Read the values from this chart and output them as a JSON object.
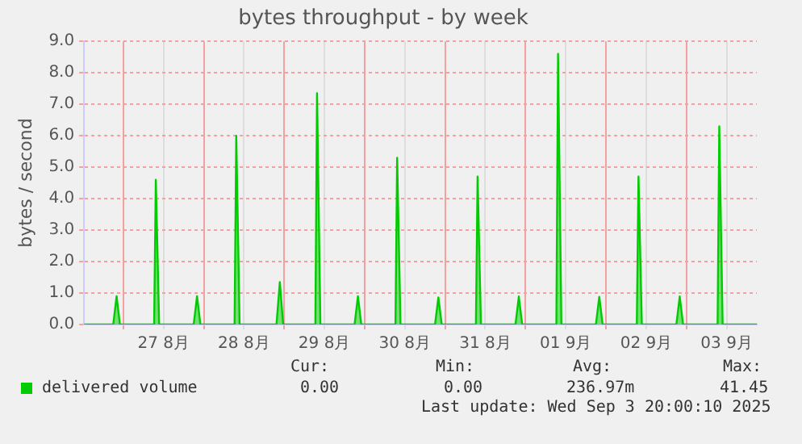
{
  "chart_data": {
    "type": "area",
    "title": "bytes throughput - by week",
    "ylabel": "bytes / second",
    "x": [
      "2025-08-26T12:18",
      "2025-08-26T21:00",
      "2025-08-26T22:00",
      "2025-08-26T23:00",
      "2025-08-27T09:12",
      "2025-08-27T09:42",
      "2025-08-27T10:42",
      "2025-08-27T21:00",
      "2025-08-27T22:00",
      "2025-08-27T23:00",
      "2025-08-28T09:12",
      "2025-08-28T09:42",
      "2025-08-28T10:42",
      "2025-08-28T21:42",
      "2025-08-28T22:42",
      "2025-08-28T23:42",
      "2025-08-29T09:18",
      "2025-08-29T09:48",
      "2025-08-29T10:48",
      "2025-08-29T21:00",
      "2025-08-29T22:00",
      "2025-08-29T23:00",
      "2025-08-30T09:12",
      "2025-08-30T09:42",
      "2025-08-30T10:42",
      "2025-08-30T21:00",
      "2025-08-30T22:00",
      "2025-08-30T23:00",
      "2025-08-31T09:12",
      "2025-08-31T09:42",
      "2025-08-31T10:42",
      "2025-08-31T21:00",
      "2025-08-31T22:00",
      "2025-08-31T23:00",
      "2025-09-01T09:12",
      "2025-09-01T09:42",
      "2025-09-01T10:42",
      "2025-09-01T21:00",
      "2025-09-01T22:00",
      "2025-09-01T23:00",
      "2025-09-02T09:12",
      "2025-09-02T09:42",
      "2025-09-02T10:42",
      "2025-09-02T21:00",
      "2025-09-02T22:00",
      "2025-09-02T23:00",
      "2025-09-03T09:18",
      "2025-09-03T09:48",
      "2025-09-03T10:48",
      "2025-09-03T21:00"
    ],
    "series": [
      {
        "name": "delivered volume",
        "color": "#00cc00",
        "values": [
          0,
          0,
          0.9,
          0,
          0,
          4.6,
          0,
          0,
          0.9,
          0,
          0,
          6.0,
          0,
          0,
          1.35,
          0,
          0,
          7.35,
          0,
          0,
          0.9,
          0,
          0,
          5.3,
          0,
          0,
          0.86,
          0,
          0,
          4.7,
          0,
          0,
          0.89,
          0,
          0,
          8.6,
          0,
          0,
          0.88,
          0,
          0,
          4.7,
          0,
          0,
          0.89,
          0,
          0,
          6.3,
          0,
          0
        ]
      }
    ],
    "xlim": [
      "2025-08-26T12:18",
      "2025-09-03T21:00"
    ],
    "xticks": [
      {
        "value": "2025-08-27T00:00",
        "label": null
      },
      {
        "value": "2025-08-27T12:00",
        "label": "27 8月"
      },
      {
        "value": "2025-08-28T00:00",
        "label": null
      },
      {
        "value": "2025-08-28T12:00",
        "label": "28 8月"
      },
      {
        "value": "2025-08-29T00:00",
        "label": null
      },
      {
        "value": "2025-08-29T12:00",
        "label": "29 8月"
      },
      {
        "value": "2025-08-30T00:00",
        "label": null
      },
      {
        "value": "2025-08-30T12:00",
        "label": "30 8月"
      },
      {
        "value": "2025-08-31T00:00",
        "label": null
      },
      {
        "value": "2025-08-31T12:00",
        "label": "31 8月"
      },
      {
        "value": "2025-09-01T00:00",
        "label": null
      },
      {
        "value": "2025-09-01T12:00",
        "label": "01 9月"
      },
      {
        "value": "2025-09-02T00:00",
        "label": null
      },
      {
        "value": "2025-09-02T12:00",
        "label": "02 9月"
      },
      {
        "value": "2025-09-03T00:00",
        "label": null
      },
      {
        "value": "2025-09-03T12:00",
        "label": "03 9月"
      }
    ],
    "ylim": [
      0,
      9
    ],
    "yticks": [
      {
        "value": 0,
        "label": "0.0"
      },
      {
        "value": 1,
        "label": "1.0"
      },
      {
        "value": 2,
        "label": "2.0"
      },
      {
        "value": 3,
        "label": "3.0"
      },
      {
        "value": 4,
        "label": "4.0"
      },
      {
        "value": 5,
        "label": "5.0"
      },
      {
        "value": 6,
        "label": "6.0"
      },
      {
        "value": 7,
        "label": "7.0"
      },
      {
        "value": 8,
        "label": "8.0"
      },
      {
        "value": 9,
        "label": "9.0"
      }
    ],
    "grid": true,
    "legend": "bottom",
    "annotations": [
      "Cur:",
      "Min:",
      "Avg:",
      "Max:",
      "0.00",
      "0.00",
      "236.97m",
      "41.45",
      "Last update: Wed Sep  3 20:00:10 2025"
    ]
  }
}
